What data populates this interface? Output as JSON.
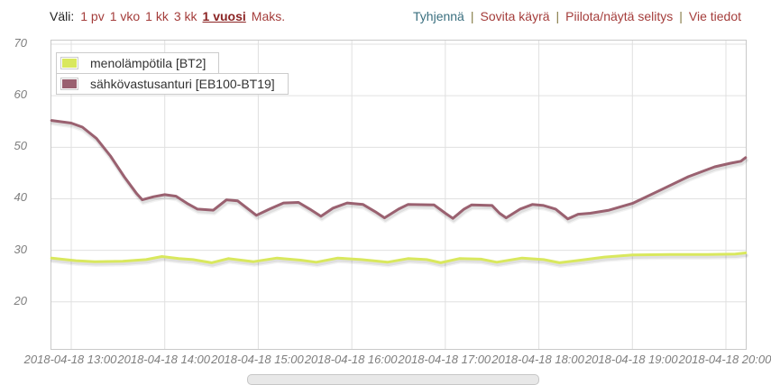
{
  "toolbar": {
    "range_label": "Väli:",
    "intervals": [
      {
        "label": "1 pv",
        "selected": false
      },
      {
        "label": "1 vko",
        "selected": false
      },
      {
        "label": "1 kk",
        "selected": false
      },
      {
        "label": "3 kk",
        "selected": false
      },
      {
        "label": "1 vuosi",
        "selected": true
      },
      {
        "label": "Maks.",
        "selected": false
      }
    ],
    "actions": [
      {
        "label": "Tyhjennä",
        "color": "#3a6f7f"
      },
      {
        "label": "Sovita käyrä",
        "color": "#a43d3b"
      },
      {
        "label": "Piilota/näytä selitys",
        "color": "#a43d3b"
      },
      {
        "label": "Vie tiedot",
        "color": "#a43d3b"
      }
    ],
    "separator": "|"
  },
  "legend": {
    "items": [
      {
        "label": "menolämpötila [BT2]",
        "color": "#d9e85e"
      },
      {
        "label": "sähkövastusanturi [EB100-BT19]",
        "color": "#9a6170"
      }
    ]
  },
  "colors": {
    "link_red": "#a43d3b",
    "link_red_selected": "#8b2424",
    "link_teal": "#3a6f7f",
    "separator_olive": "#857a45",
    "grid": "#e0e0e0",
    "plot_border": "#c9c9c9",
    "axis_text": "#7e7e7e",
    "series_green": "#d9e85e",
    "series_maroon": "#9a6170"
  },
  "chart_data": {
    "type": "line",
    "title": "",
    "xlabel": "",
    "ylabel": "",
    "x_unit": "time of day on 2018-04-18 (decimal hours)",
    "y_unit": "temperature °C",
    "xlim": [
      12.788,
      20.212
    ],
    "ylim": [
      10.87,
      70.7
    ],
    "grid": true,
    "legend_position": "top-left",
    "y_ticks": [
      20,
      30,
      40,
      50,
      60,
      70
    ],
    "x_ticks": [
      {
        "t": 13,
        "label": "2018-04-18 13:00"
      },
      {
        "t": 14,
        "label": "2018-04-18 14:00"
      },
      {
        "t": 15,
        "label": "2018-04-18 15:00"
      },
      {
        "t": 16,
        "label": "2018-04-18 16:00"
      },
      {
        "t": 17,
        "label": "2018-04-18 17:00"
      },
      {
        "t": 18,
        "label": "2018-04-18 18:00"
      },
      {
        "t": 19,
        "label": "2018-04-18 19:00"
      },
      {
        "t": 20,
        "label": "2018-04-18 20:00"
      }
    ],
    "series": [
      {
        "name": "menolämpötila [BT2]",
        "color": "#d9e85e",
        "points": [
          [
            12.79,
            28.5
          ],
          [
            13.05,
            28.0
          ],
          [
            13.25,
            27.8
          ],
          [
            13.55,
            27.9
          ],
          [
            13.8,
            28.2
          ],
          [
            13.97,
            28.8
          ],
          [
            14.15,
            28.4
          ],
          [
            14.3,
            28.2
          ],
          [
            14.5,
            27.6
          ],
          [
            14.68,
            28.4
          ],
          [
            14.95,
            27.8
          ],
          [
            15.2,
            28.5
          ],
          [
            15.45,
            28.1
          ],
          [
            15.62,
            27.7
          ],
          [
            15.85,
            28.5
          ],
          [
            16.1,
            28.2
          ],
          [
            16.38,
            27.7
          ],
          [
            16.6,
            28.4
          ],
          [
            16.8,
            28.2
          ],
          [
            16.95,
            27.6
          ],
          [
            17.15,
            28.4
          ],
          [
            17.38,
            28.3
          ],
          [
            17.55,
            27.7
          ],
          [
            17.82,
            28.5
          ],
          [
            18.05,
            28.2
          ],
          [
            18.22,
            27.6
          ],
          [
            18.45,
            28.1
          ],
          [
            18.7,
            28.7
          ],
          [
            19.0,
            29.1
          ],
          [
            19.4,
            29.2
          ],
          [
            19.8,
            29.2
          ],
          [
            20.1,
            29.3
          ],
          [
            20.21,
            29.5
          ]
        ]
      },
      {
        "name": "sähkövastusanturi [EB100-BT19]",
        "color": "#9a6170",
        "points": [
          [
            12.79,
            55.2
          ],
          [
            13.0,
            54.7
          ],
          [
            13.12,
            53.9
          ],
          [
            13.27,
            51.7
          ],
          [
            13.42,
            48.3
          ],
          [
            13.57,
            44.2
          ],
          [
            13.7,
            41.0
          ],
          [
            13.76,
            39.8
          ],
          [
            13.88,
            40.4
          ],
          [
            14.0,
            40.8
          ],
          [
            14.12,
            40.5
          ],
          [
            14.25,
            39.0
          ],
          [
            14.35,
            38.0
          ],
          [
            14.52,
            37.8
          ],
          [
            14.66,
            39.8
          ],
          [
            14.78,
            39.6
          ],
          [
            14.98,
            36.8
          ],
          [
            15.12,
            38.0
          ],
          [
            15.27,
            39.2
          ],
          [
            15.43,
            39.3
          ],
          [
            15.55,
            38.0
          ],
          [
            15.67,
            36.6
          ],
          [
            15.8,
            38.2
          ],
          [
            15.95,
            39.2
          ],
          [
            16.12,
            38.9
          ],
          [
            16.25,
            37.5
          ],
          [
            16.35,
            36.3
          ],
          [
            16.5,
            38.0
          ],
          [
            16.6,
            38.9
          ],
          [
            16.88,
            38.8
          ],
          [
            17.0,
            37.2
          ],
          [
            17.08,
            36.2
          ],
          [
            17.2,
            38.0
          ],
          [
            17.28,
            38.8
          ],
          [
            17.5,
            38.7
          ],
          [
            17.58,
            37.2
          ],
          [
            17.65,
            36.3
          ],
          [
            17.8,
            38.0
          ],
          [
            17.93,
            38.9
          ],
          [
            18.05,
            38.7
          ],
          [
            18.18,
            38.0
          ],
          [
            18.31,
            36.1
          ],
          [
            18.42,
            37.0
          ],
          [
            18.55,
            37.2
          ],
          [
            18.75,
            37.8
          ],
          [
            19.0,
            39.1
          ],
          [
            19.3,
            41.7
          ],
          [
            19.6,
            44.3
          ],
          [
            19.88,
            46.2
          ],
          [
            20.05,
            46.9
          ],
          [
            20.16,
            47.3
          ],
          [
            20.21,
            48.0
          ]
        ]
      }
    ]
  }
}
